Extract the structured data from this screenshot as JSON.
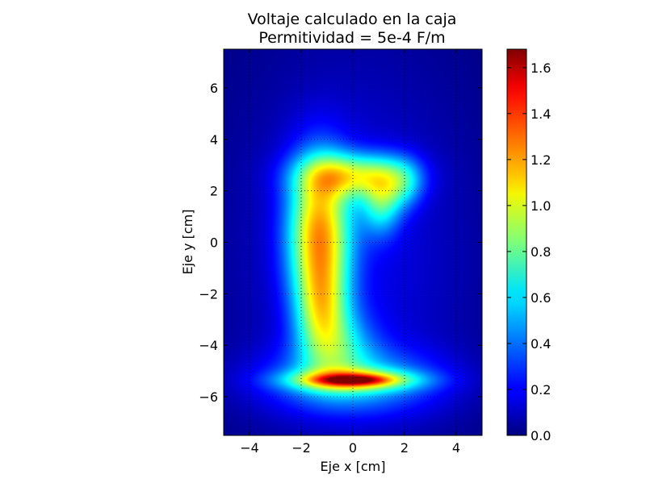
{
  "chart_data": {
    "type": "heatmap",
    "title": "Voltaje calculado en la caja",
    "subtitle": "Permitividad = 5e-4 F/m",
    "xlabel": "Eje x [cm]",
    "ylabel": "Eje y [cm]",
    "xlim": [
      -5,
      5
    ],
    "ylim": [
      -7.5,
      7.5
    ],
    "xticks": [
      -4,
      -2,
      0,
      2,
      4
    ],
    "xtick_labels": [
      "−4",
      "−2",
      "0",
      "2",
      "4"
    ],
    "yticks": [
      -6,
      -4,
      -2,
      0,
      2,
      4,
      6
    ],
    "ytick_labels": [
      "−6",
      "−4",
      "−2",
      "0",
      "2",
      "4",
      "6"
    ],
    "grid": true,
    "colormap": "jet",
    "colorbar": {
      "range": [
        0.0,
        1.68
      ],
      "ticks": [
        0.0,
        0.2,
        0.4,
        0.6,
        0.8,
        1.0,
        1.2,
        1.4,
        1.6
      ],
      "tick_labels": [
        "0.0",
        "0.2",
        "0.4",
        "0.6",
        "0.8",
        "1.0",
        "1.2",
        "1.4",
        "1.6"
      ]
    },
    "features": [
      {
        "name": "upper-left-lobe",
        "x": -1.4,
        "y": 0.5,
        "peak_value": 1.45
      },
      {
        "name": "upper-right-arm",
        "x": 0.8,
        "y": 2.2,
        "peak_value": 1.2
      },
      {
        "name": "bottom-strip",
        "x": 0.0,
        "y": -5.3,
        "peak_value": 1.68
      }
    ]
  }
}
